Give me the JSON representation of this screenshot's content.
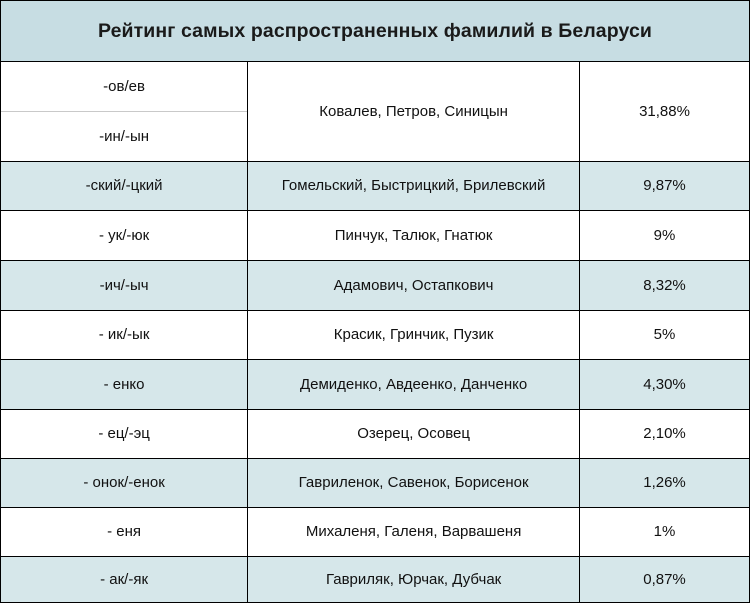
{
  "title": "Рейтинг самых распространенных фамилий в Беларуси",
  "rows": [
    {
      "suffixes": [
        "-ов/ев",
        "-ин/-ын"
      ],
      "examples": "Ковалев, Петров, Синицын",
      "percent": "31,88%"
    },
    {
      "suffix": "-ский/-цкий",
      "examples": "Гомельский, Быстрицкий, Брилевский",
      "percent": "9,87%"
    },
    {
      "suffix": "- ук/-юк",
      "examples": "Пинчук, Талюк, Гнатюк",
      "percent": "9%"
    },
    {
      "suffix": "-ич/-ыч",
      "examples": "Адамович, Остапкович",
      "percent": "8,32%"
    },
    {
      "suffix": "- ик/-ык",
      "examples": "Красик, Гринчик, Пузик",
      "percent": "5%"
    },
    {
      "suffix": "- енко",
      "examples": "Демиденко, Авдеенко, Данченко",
      "percent": "4,30%"
    },
    {
      "suffix": "- ец/-эц",
      "examples": "Озерец, Осовец",
      "percent": "2,10%"
    },
    {
      "suffix": "- онок/-енок",
      "examples": "Гавриленок, Савенок, Борисенок",
      "percent": "1,26%"
    },
    {
      "suffix": "- еня",
      "examples": "Михаленя, Галеня, Варвашеня",
      "percent": "1%"
    },
    {
      "suffix": "- ак/-як",
      "examples": "Гавриляк, Юрчак, Дубчак",
      "percent": "0,87%"
    }
  ]
}
